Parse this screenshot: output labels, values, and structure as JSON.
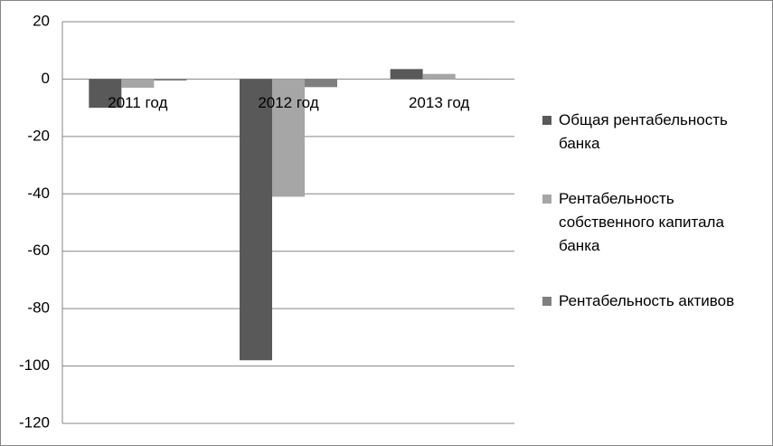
{
  "chart_data": {
    "type": "bar",
    "categories": [
      "2011 год",
      "2012 год",
      "2013 год"
    ],
    "series": [
      {
        "name": "Общая рентабельность банка",
        "color": "#595959",
        "values": [
          -10,
          -98,
          3.5
        ]
      },
      {
        "name": "Рентабельность собственного капитала банка",
        "color": "#a6a6a6",
        "values": [
          -3,
          -41,
          1.8
        ]
      },
      {
        "name": "Рентабельность активов",
        "color": "#7f7f7f",
        "values": [
          -0.5,
          -2.8,
          0.1
        ]
      }
    ],
    "ylim": [
      -120,
      20
    ],
    "yticks": [
      -120,
      -100,
      -80,
      -60,
      -40,
      -20,
      0,
      20
    ],
    "grid": true,
    "legend": "right"
  }
}
